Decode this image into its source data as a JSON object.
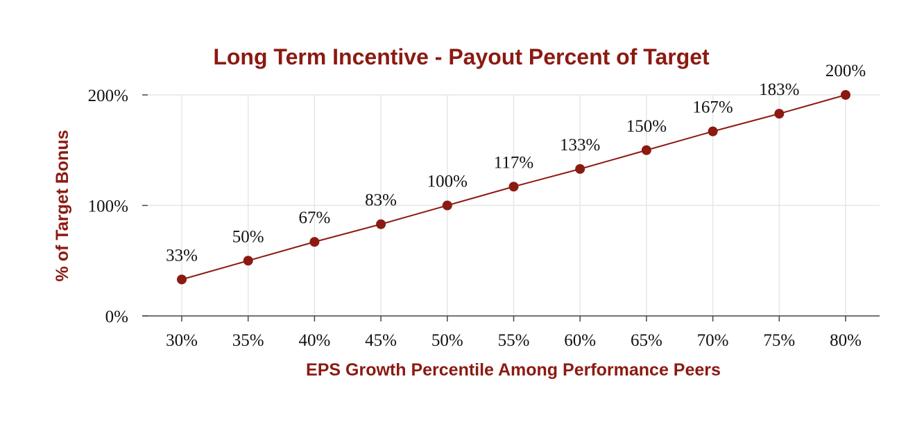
{
  "chart_data": {
    "type": "line",
    "title": "Long Term Incentive - Payout Percent of Target",
    "xlabel": "EPS Growth Percentile Among Performance Peers",
    "ylabel": "% of Target Bonus",
    "categories": [
      "30%",
      "35%",
      "40%",
      "45%",
      "50%",
      "55%",
      "60%",
      "65%",
      "70%",
      "75%",
      "80%"
    ],
    "series": [
      {
        "values": [
          33,
          50,
          67,
          83,
          100,
          117,
          133,
          150,
          167,
          183,
          200
        ],
        "labels": [
          "33%",
          "50%",
          "67%",
          "83%",
          "100%",
          "117%",
          "133%",
          "150%",
          "167%",
          "183%",
          "200%"
        ]
      }
    ],
    "ylim": [
      0,
      200
    ],
    "yticks": [
      0,
      100,
      200
    ],
    "ytick_labels": [
      "0%",
      "100%",
      "200%"
    ],
    "grid": true,
    "color": "#8b1a12"
  }
}
